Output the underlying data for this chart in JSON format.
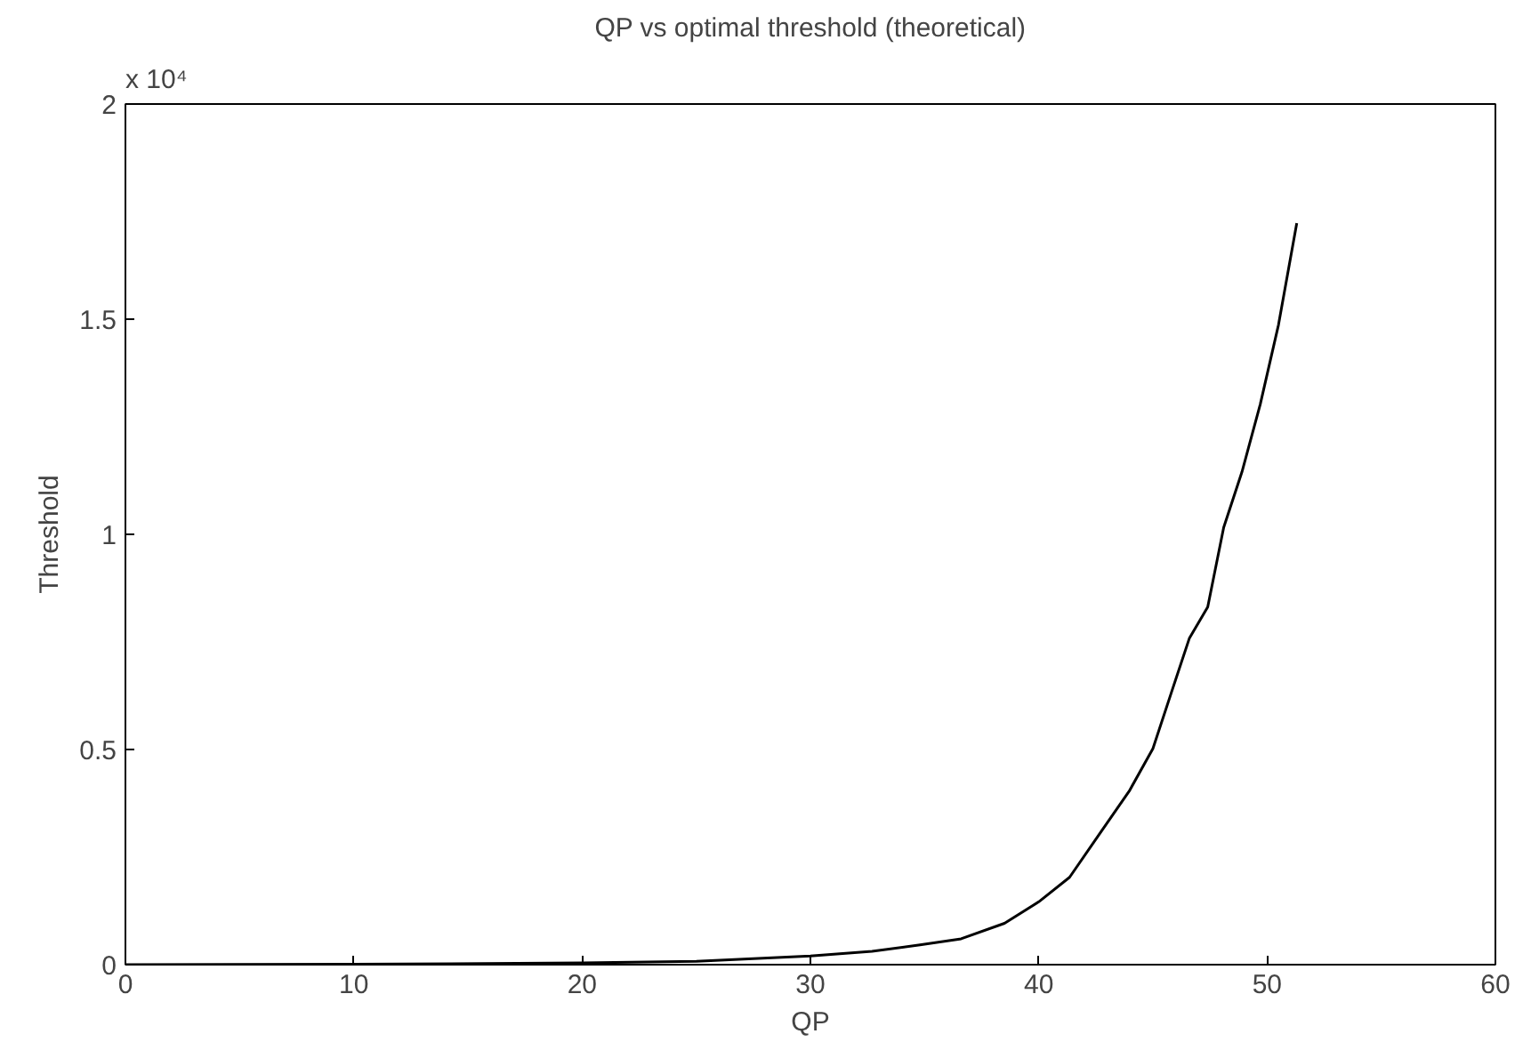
{
  "chart_data": {
    "type": "line",
    "title": "QP vs optimal threshold (theoretical)",
    "xlabel": "QP",
    "ylabel": "Threshold",
    "annotations": [
      "x 10⁴"
    ],
    "x": [
      0,
      10,
      20,
      25,
      30,
      32.7,
      34.8,
      36.6,
      38.5,
      40.0,
      41.35,
      42.65,
      43.96,
      45.0,
      45.8,
      46.6,
      47.4,
      48.1,
      48.9,
      49.7,
      50.5,
      51.3
    ],
    "series": [
      {
        "color": "#000000",
        "values": [
          0,
          0.001,
          0.004,
          0.008,
          0.02,
          0.031,
          0.046,
          0.06,
          0.096,
          0.146,
          0.203,
          0.303,
          0.403,
          0.502,
          0.631,
          0.759,
          0.831,
          1.016,
          1.145,
          1.302,
          1.487,
          1.723
        ]
      }
    ],
    "xlim": [
      0,
      60
    ],
    "xticks": [
      0,
      10,
      20,
      30,
      40,
      50,
      60
    ],
    "ylim": [
      0,
      2
    ],
    "yticks": [
      0,
      0.5,
      1,
      1.5,
      2
    ],
    "grid": false,
    "marker": "none",
    "line_style": "solid"
  }
}
